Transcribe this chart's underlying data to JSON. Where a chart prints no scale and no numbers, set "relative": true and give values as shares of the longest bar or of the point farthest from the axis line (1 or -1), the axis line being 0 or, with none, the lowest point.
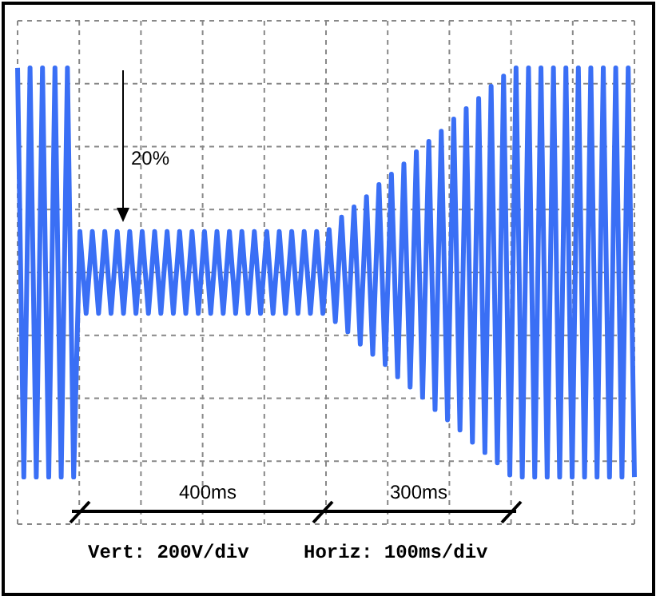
{
  "chart_data": {
    "type": "line",
    "relative": true,
    "categories": [
      null,
      null,
      null,
      null,
      null,
      null,
      null,
      null,
      null,
      null,
      null,
      null,
      null,
      null,
      null,
      null,
      null,
      null,
      null,
      null,
      null,
      null,
      null,
      null,
      null,
      null,
      null,
      null,
      null,
      null,
      null,
      null,
      null,
      null,
      null,
      null,
      null,
      null,
      null,
      null,
      null,
      null,
      null,
      null,
      null,
      null,
      null,
      null,
      null,
      null,
      null,
      null,
      null,
      null,
      null,
      null,
      null,
      null,
      null,
      null,
      null,
      null,
      null,
      null,
      null,
      null,
      null,
      null,
      null,
      null,
      null,
      null,
      null,
      null,
      null,
      null,
      null,
      null,
      null,
      null,
      null,
      null,
      null,
      null,
      null,
      null,
      null,
      null,
      null,
      null,
      null,
      null,
      null,
      null,
      null,
      null,
      null,
      null,
      null,
      null
    ],
    "series": [
      {
        "color": "#3a6ff5",
        "values": [
          1,
          -1,
          1,
          -1,
          1,
          -1,
          1,
          -1,
          1,
          -1,
          0.2,
          -0.2,
          0.2,
          -0.2,
          0.2,
          -0.2,
          0.2,
          -0.2,
          0.2,
          -0.2,
          0.2,
          -0.2,
          0.2,
          -0.2,
          0.2,
          -0.2,
          0.2,
          -0.2,
          0.2,
          -0.2,
          0.2,
          -0.2,
          0.2,
          -0.2,
          0.2,
          -0.2,
          0.2,
          -0.2,
          0.2,
          -0.2,
          0.2,
          -0.2,
          0.2,
          -0.2,
          0.2,
          -0.2,
          0.2,
          -0.2,
          0.2,
          -0.2,
          0.21,
          -0.24,
          0.27,
          -0.29,
          0.32,
          -0.35,
          0.37,
          -0.4,
          0.43,
          -0.45,
          0.48,
          -0.51,
          0.53,
          -0.56,
          0.59,
          -0.61,
          0.64,
          -0.67,
          0.69,
          -0.72,
          0.75,
          -0.77,
          0.8,
          -0.83,
          0.85,
          -0.88,
          0.91,
          -0.93,
          0.96,
          -0.99,
          1,
          -1,
          1,
          -1,
          1,
          -1,
          1,
          -1,
          1,
          -1,
          1,
          -1,
          1,
          -1,
          1,
          -1,
          1,
          -1,
          1,
          -1
        ]
      }
    ],
    "annotations": [
      "20%",
      "400ms",
      "300ms",
      "Vert: 200V/div",
      "Horiz: 100ms/div"
    ],
    "grid": true,
    "marker": "none",
    "line_style": "solid"
  }
}
